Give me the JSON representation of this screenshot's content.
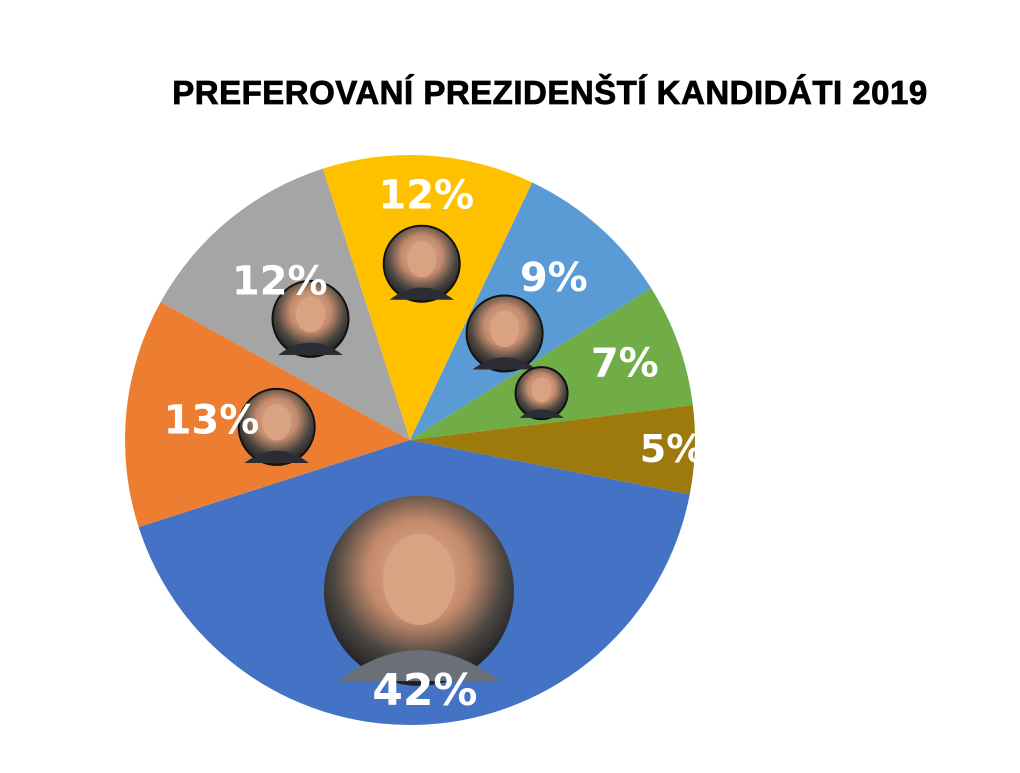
{
  "title": "PREFEROVANÍ PREZIDENŠTÍ KANDIDÁTI 2019",
  "chart_data": {
    "type": "pie",
    "title": "PREFEROVANÍ PREZIDENŠTÍ KANDIDÁTI 2019",
    "slices": [
      {
        "value": 42,
        "label": "42%",
        "color": "#4472C4"
      },
      {
        "value": 13,
        "label": "13%",
        "color": "#ED7D31"
      },
      {
        "value": 12,
        "label": "12%",
        "color": "#A5A5A5"
      },
      {
        "value": 12,
        "label": "12%",
        "color": "#FFC000"
      },
      {
        "value": 9,
        "label": "9%",
        "color": "#5B9BD5"
      },
      {
        "value": 7,
        "label": "7%",
        "color": "#70AD47"
      },
      {
        "value": 5,
        "label": "5%",
        "color": "#9E7A0C"
      }
    ],
    "legend": "none",
    "slice_photos": [
      "portrait-photo-42",
      "portrait-photo-13",
      "portrait-photo-12-grey",
      "portrait-photo-12-yellow",
      "portrait-photo-9",
      "portrait-photo-7",
      null
    ]
  }
}
